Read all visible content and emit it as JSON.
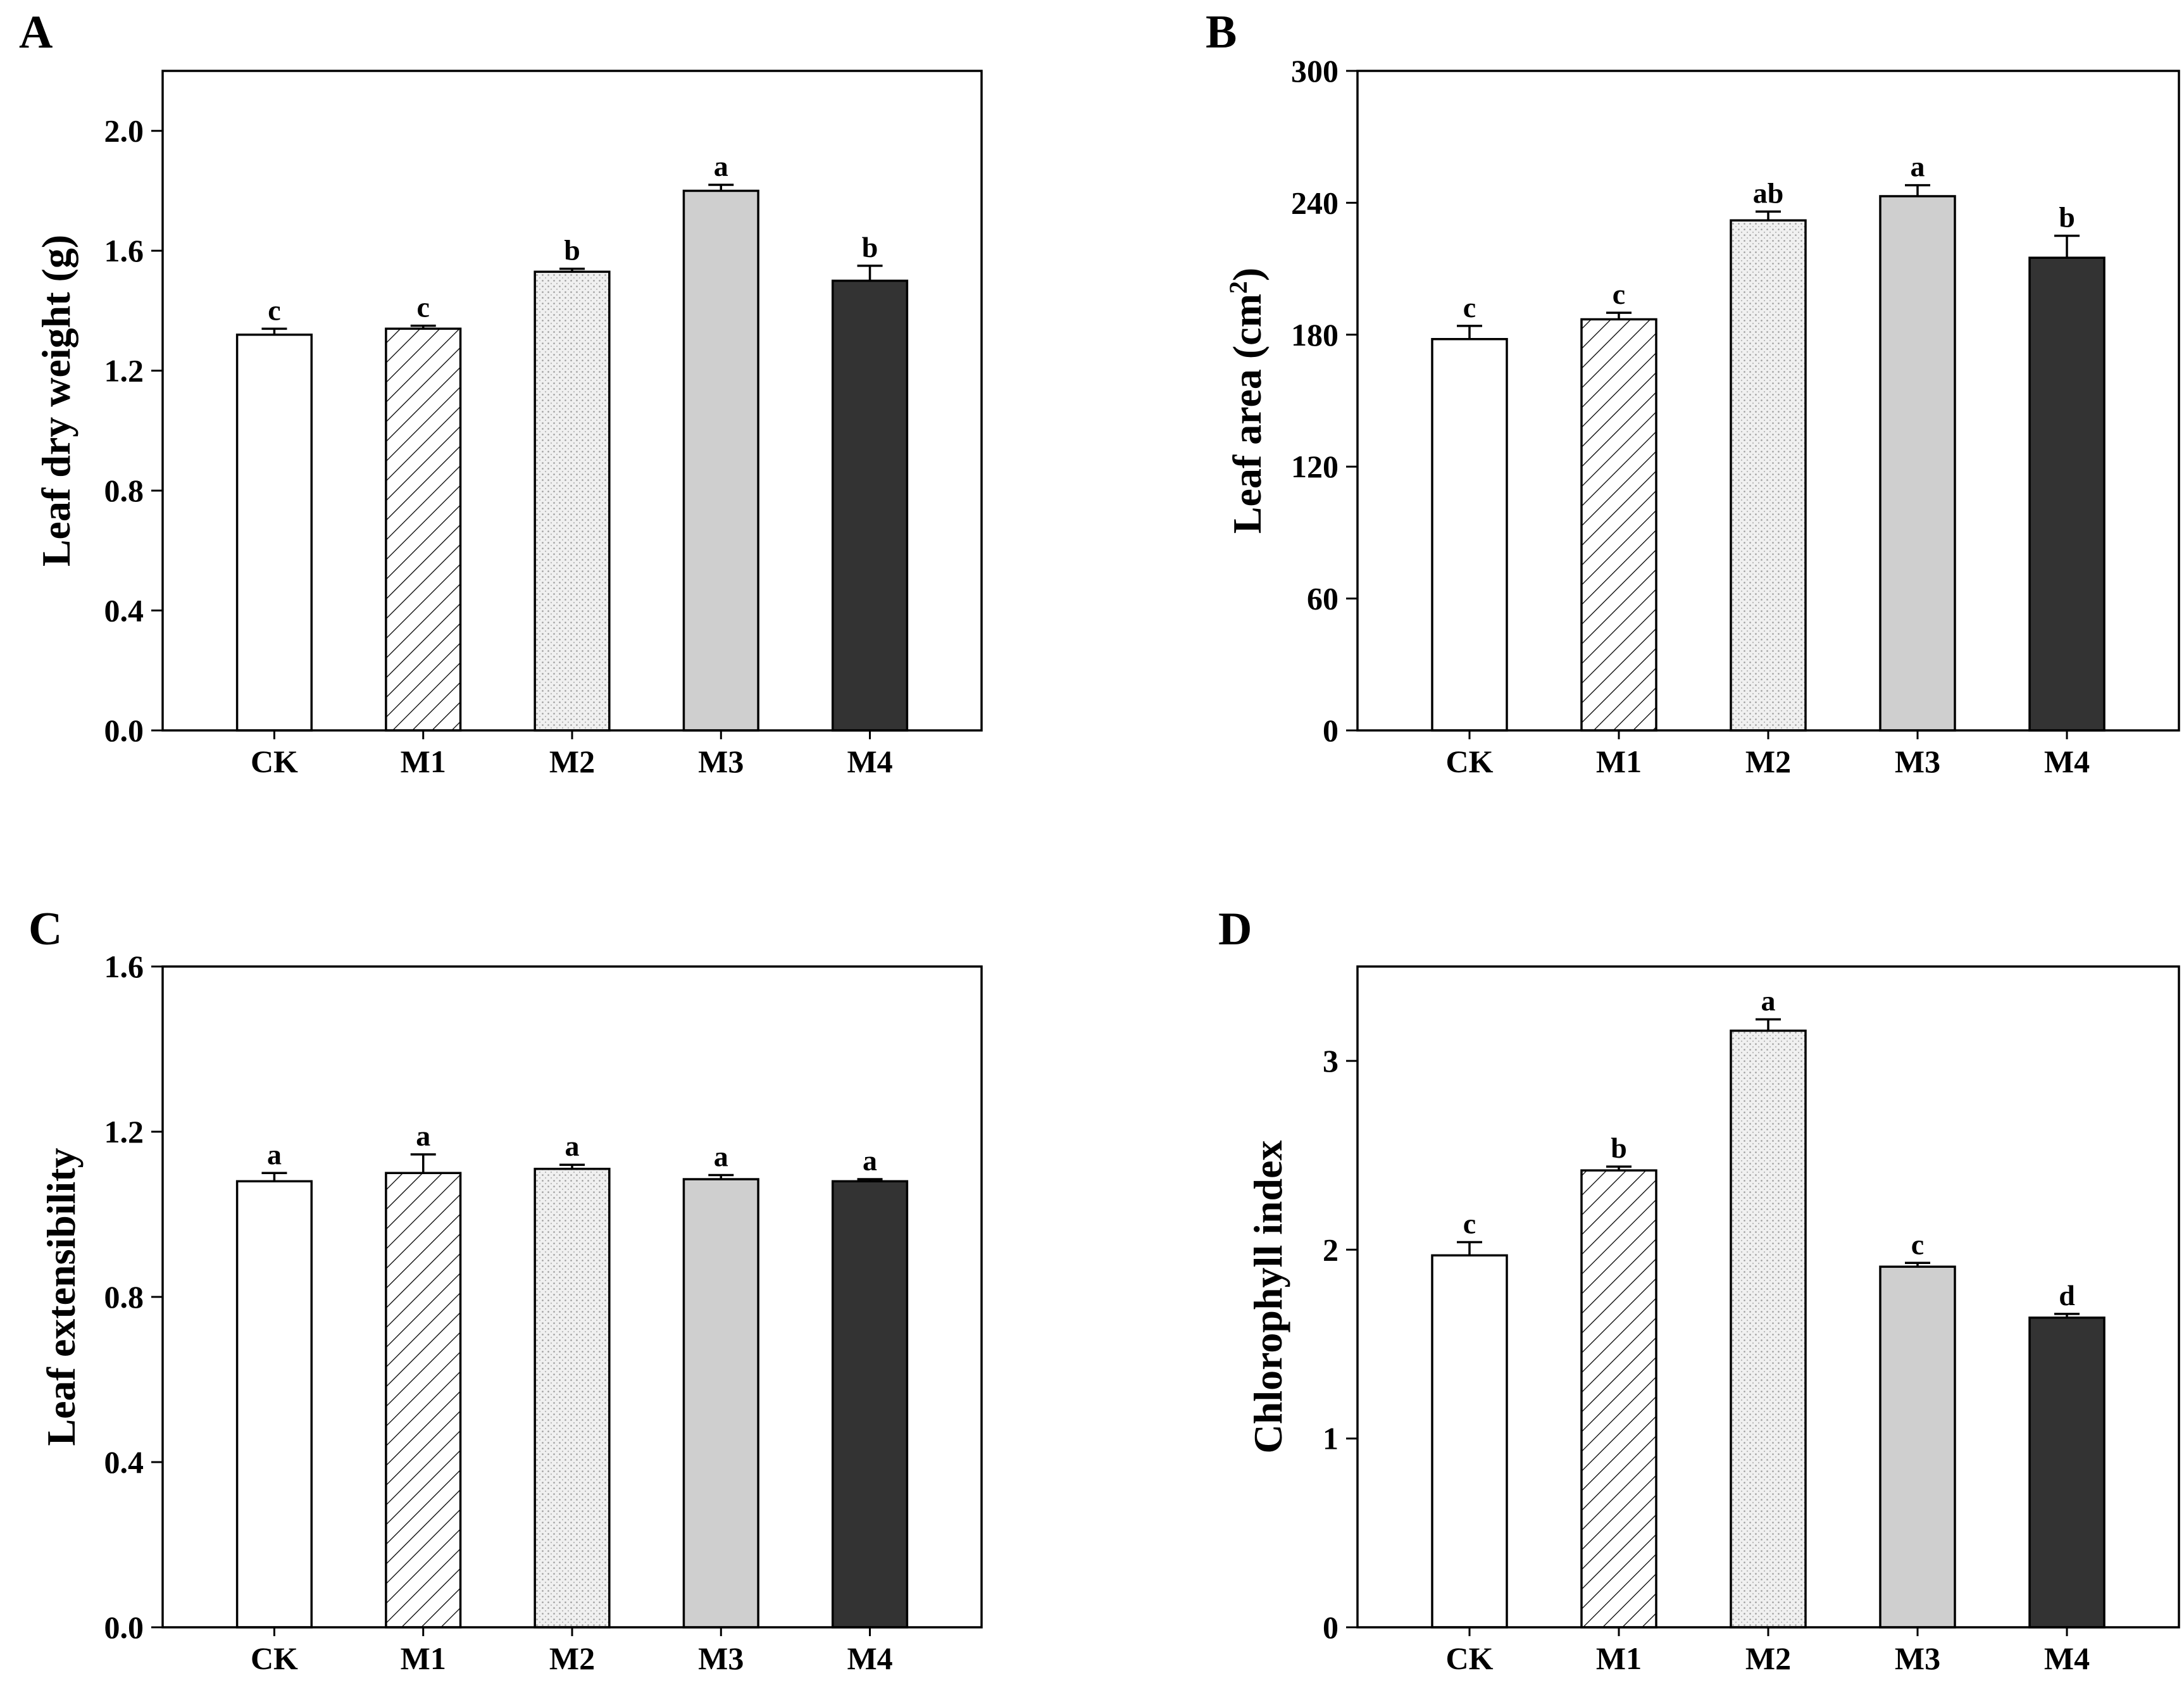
{
  "patterns": {
    "CK": "white",
    "M1": "hatch",
    "M2": "dots",
    "M3": "lightgray",
    "M4": "darkgray"
  },
  "colors": {
    "axis": "#000000",
    "m3_fill": "#cfcfcf",
    "m4_fill": "#333333",
    "m2_fill": "#ececec"
  },
  "chart_data": [
    {
      "panel": "A",
      "type": "bar",
      "title": "",
      "xlabel": "",
      "ylabel": "Leaf dry weight (g)",
      "categories": [
        "CK",
        "M1",
        "M2",
        "M3",
        "M4"
      ],
      "values": [
        1.32,
        1.34,
        1.53,
        1.8,
        1.5
      ],
      "errors": [
        0.02,
        0.01,
        0.01,
        0.02,
        0.05
      ],
      "significance": [
        "c",
        "c",
        "b",
        "a",
        "b"
      ],
      "ylim": [
        0,
        2.2
      ],
      "yticks": [
        0.0,
        0.4,
        0.8,
        1.2,
        1.6,
        2.0
      ],
      "ytick_labels": [
        "0.0",
        "0.4",
        "0.8",
        "1.2",
        "1.6",
        "2.0"
      ]
    },
    {
      "panel": "B",
      "type": "bar",
      "title": "",
      "xlabel": "",
      "ylabel": "Leaf area (cm2)",
      "categories": [
        "CK",
        "M1",
        "M2",
        "M3",
        "M4"
      ],
      "values": [
        178,
        187,
        232,
        243,
        215
      ],
      "errors": [
        6,
        3,
        4,
        5,
        10
      ],
      "significance": [
        "c",
        "c",
        "ab",
        "a",
        "b"
      ],
      "ylim": [
        0,
        300
      ],
      "yticks": [
        0,
        60,
        120,
        180,
        240,
        300
      ],
      "ytick_labels": [
        "0",
        "60",
        "120",
        "180",
        "240",
        "300"
      ]
    },
    {
      "panel": "C",
      "type": "bar",
      "title": "",
      "xlabel": "",
      "ylabel": "Leaf extensibility",
      "categories": [
        "CK",
        "M1",
        "M2",
        "M3",
        "M4"
      ],
      "values": [
        1.08,
        1.1,
        1.11,
        1.085,
        1.08
      ],
      "errors": [
        0.02,
        0.045,
        0.01,
        0.01,
        0.005
      ],
      "significance": [
        "a",
        "a",
        "a",
        "a",
        "a"
      ],
      "ylim": [
        0,
        1.6
      ],
      "yticks": [
        0.0,
        0.4,
        0.8,
        1.2,
        1.6
      ],
      "ytick_labels": [
        "0.0",
        "0.4",
        "0.8",
        "1.2",
        "1.6"
      ]
    },
    {
      "panel": "D",
      "type": "bar",
      "title": "",
      "xlabel": "",
      "ylabel": "Chlorophyll index",
      "categories": [
        "CK",
        "M1",
        "M2",
        "M3",
        "M4"
      ],
      "values": [
        1.97,
        2.42,
        3.16,
        1.91,
        1.64
      ],
      "errors": [
        0.07,
        0.02,
        0.06,
        0.02,
        0.02
      ],
      "significance": [
        "c",
        "b",
        "a",
        "c",
        "d"
      ],
      "ylim": [
        0,
        3.5
      ],
      "yticks": [
        0,
        1,
        2,
        3
      ],
      "ytick_labels": [
        "0",
        "1",
        "2",
        "3"
      ]
    }
  ]
}
